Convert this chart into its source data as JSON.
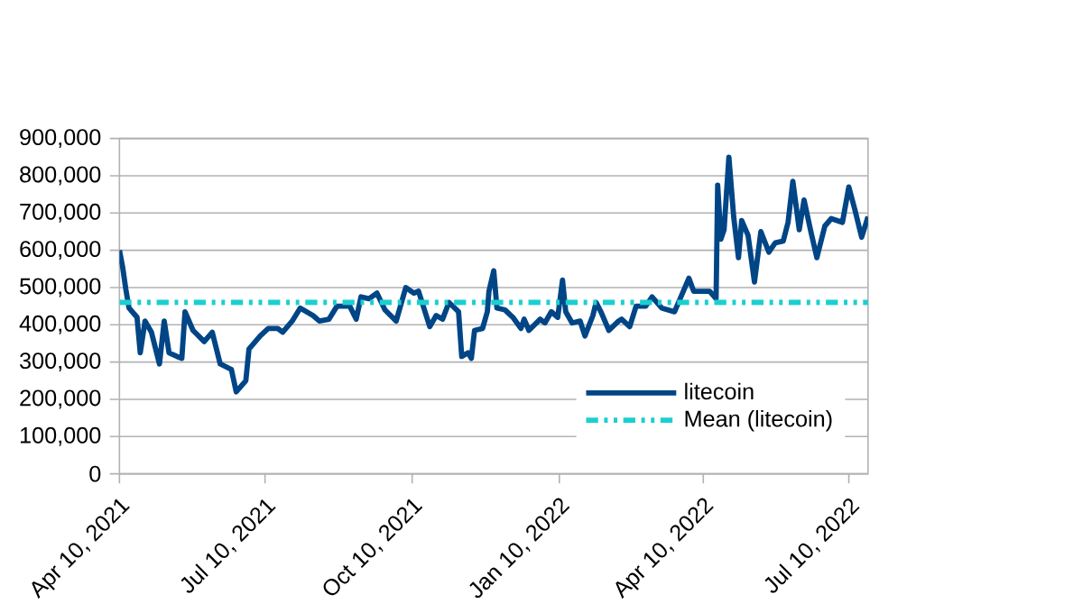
{
  "chart_data": {
    "type": "line",
    "x": [
      "2021-04-10",
      "2021-04-12",
      "2021-04-14",
      "2021-04-16",
      "2021-04-21",
      "2021-04-23",
      "2021-04-26",
      "2021-04-30",
      "2021-05-05",
      "2021-05-08",
      "2021-05-11",
      "2021-05-16",
      "2021-05-19",
      "2021-05-21",
      "2021-05-26",
      "2021-06-02",
      "2021-06-07",
      "2021-06-12",
      "2021-06-19",
      "2021-06-22",
      "2021-06-28",
      "2021-06-30",
      "2021-07-07",
      "2021-07-12",
      "2021-07-18",
      "2021-07-21",
      "2021-07-27",
      "2021-08-01",
      "2021-08-09",
      "2021-08-13",
      "2021-08-19",
      "2021-08-24",
      "2021-09-01",
      "2021-09-05",
      "2021-09-08",
      "2021-09-13",
      "2021-09-18",
      "2021-09-23",
      "2021-09-30",
      "2021-10-06",
      "2021-10-11",
      "2021-10-14",
      "2021-10-21",
      "2021-10-25",
      "2021-10-29",
      "2021-11-02",
      "2021-11-08",
      "2021-11-10",
      "2021-11-14",
      "2021-11-16",
      "2021-11-18",
      "2021-11-23",
      "2021-11-26",
      "2021-11-27",
      "2021-11-30",
      "2021-12-02",
      "2021-12-07",
      "2021-12-12",
      "2021-12-17",
      "2021-12-19",
      "2021-12-22",
      "2021-12-29",
      "2022-01-01",
      "2022-01-05",
      "2022-01-09",
      "2022-01-12",
      "2022-01-14",
      "2022-01-18",
      "2022-01-23",
      "2022-01-26",
      "2022-01-31",
      "2022-02-02",
      "2022-02-05",
      "2022-02-10",
      "2022-02-16",
      "2022-02-18",
      "2022-02-23",
      "2022-02-27",
      "2022-03-05",
      "2022-03-09",
      "2022-03-15",
      "2022-03-23",
      "2022-03-27",
      "2022-04-01",
      "2022-04-04",
      "2022-04-14",
      "2022-04-18",
      "2022-04-19",
      "2022-04-21",
      "2022-04-23",
      "2022-04-26",
      "2022-04-29",
      "2022-05-02",
      "2022-05-04",
      "2022-05-08",
      "2022-05-12",
      "2022-05-16",
      "2022-05-21",
      "2022-05-25",
      "2022-05-30",
      "2022-06-02",
      "2022-06-05",
      "2022-06-09",
      "2022-06-12",
      "2022-06-16",
      "2022-06-20",
      "2022-06-25",
      "2022-06-29",
      "2022-07-06",
      "2022-07-10",
      "2022-07-14",
      "2022-07-18",
      "2022-07-22"
    ],
    "series": [
      {
        "name": "litecoin",
        "color": "#004586",
        "values": [
          600000,
          555000,
          495000,
          445000,
          420000,
          325000,
          410000,
          380000,
          295000,
          410000,
          325000,
          315000,
          310000,
          435000,
          385000,
          355000,
          380000,
          295000,
          280000,
          220000,
          250000,
          335000,
          370000,
          390000,
          390000,
          380000,
          410000,
          445000,
          425000,
          410000,
          415000,
          450000,
          450000,
          415000,
          475000,
          470000,
          485000,
          440000,
          410000,
          500000,
          485000,
          490000,
          395000,
          425000,
          415000,
          460000,
          435000,
          315000,
          325000,
          310000,
          385000,
          390000,
          435000,
          490000,
          545000,
          445000,
          440000,
          420000,
          390000,
          415000,
          385000,
          415000,
          405000,
          435000,
          420000,
          520000,
          435000,
          405000,
          410000,
          370000,
          425000,
          460000,
          435000,
          385000,
          410000,
          415000,
          395000,
          450000,
          450000,
          475000,
          445000,
          435000,
          475000,
          525000,
          490000,
          490000,
          470000,
          775000,
          630000,
          655000,
          850000,
          690000,
          580000,
          680000,
          640000,
          515000,
          650000,
          595000,
          620000,
          625000,
          675000,
          785000,
          655000,
          735000,
          655000,
          580000,
          665000,
          685000,
          675000,
          770000,
          705000,
          635000,
          690000
        ]
      }
    ],
    "ref_lines": [
      {
        "axis": "y",
        "value": 460000,
        "label": "Mean (litecoin)",
        "color": "#1ccfcf",
        "line_style": "dashdot"
      }
    ],
    "xlim": [
      "2021-04-10",
      "2022-07-22"
    ],
    "xticks": [
      {
        "value": "2021-04-10",
        "label": "Apr 10, 2021"
      },
      {
        "value": "2021-07-10",
        "label": "Jul 10, 2021"
      },
      {
        "value": "2021-10-10",
        "label": "Oct 10, 2021"
      },
      {
        "value": "2022-01-10",
        "label": "Jan 10, 2022"
      },
      {
        "value": "2022-04-10",
        "label": "Apr 10, 2022"
      },
      {
        "value": "2022-07-10",
        "label": "Jul 10, 2022"
      }
    ],
    "ylim": [
      0,
      900000
    ],
    "yticks": [
      0,
      {
        "value": 100000,
        "label": "100,000"
      },
      {
        "value": 200000,
        "label": "200,000"
      },
      {
        "value": 300000,
        "label": "300,000"
      },
      {
        "value": 400000,
        "label": "400,000"
      },
      {
        "value": 500000,
        "label": "500,000"
      },
      {
        "value": 600000,
        "label": "600,000"
      },
      {
        "value": 700000,
        "label": "700,000"
      },
      {
        "value": 800000,
        "label": "800,000"
      },
      {
        "value": 900000,
        "label": "900,000"
      }
    ],
    "grid": "y",
    "legend": "bottom right",
    "marker": "none",
    "line_style": "solid"
  }
}
